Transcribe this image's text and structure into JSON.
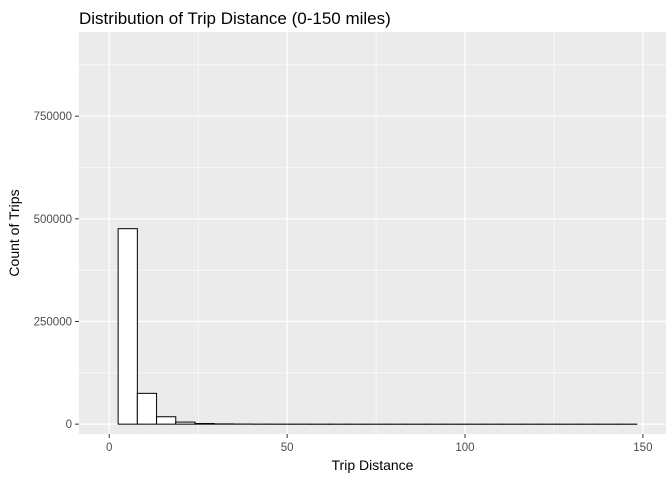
{
  "chart_data": {
    "type": "bar",
    "subtype": "histogram",
    "title": "Distribution of Trip Distance (0-150 miles)",
    "xlabel": "Trip Distance",
    "ylabel": "Count of Trips",
    "xlim": [
      -8.5,
      156.5
    ],
    "ylim": [
      -24000,
      955000
    ],
    "x_ticks": [
      0,
      50,
      100,
      150
    ],
    "y_ticks": [
      0,
      250000,
      500000,
      750000
    ],
    "x_tick_labels": [
      "0",
      "50",
      "100",
      "150"
    ],
    "y_tick_labels": [
      "0",
      "250000",
      "500000",
      "750000"
    ],
    "grid": true,
    "legend": "none",
    "colors": {
      "panel_background": "#ebebeb",
      "grid_major": "#ffffff",
      "bar_fill": "#ffffff",
      "bar_outline": "#000000"
    },
    "bins": [
      {
        "x0": 2.5,
        "x1": 7.9,
        "count": 476000
      },
      {
        "x0": 7.9,
        "x1": 13.3,
        "count": 75000
      },
      {
        "x0": 13.3,
        "x1": 18.7,
        "count": 18000
      },
      {
        "x0": 18.7,
        "x1": 24.1,
        "count": 5000
      },
      {
        "x0": 24.1,
        "x1": 29.5,
        "count": 1500
      },
      {
        "x0": 29.5,
        "x1": 34.9,
        "count": 600
      },
      {
        "x0": 34.9,
        "x1": 40.3,
        "count": 250
      },
      {
        "x0": 40.3,
        "x1": 45.7,
        "count": 120
      },
      {
        "x0": 45.7,
        "x1": 51.1,
        "count": 60
      },
      {
        "x0": 51.1,
        "x1": 56.5,
        "count": 30
      },
      {
        "x0": 56.5,
        "x1": 61.9,
        "count": 15
      },
      {
        "x0": 61.9,
        "x1": 67.3,
        "count": 10
      },
      {
        "x0": 67.3,
        "x1": 72.7,
        "count": 5
      },
      {
        "x0": 72.7,
        "x1": 78.1,
        "count": 3
      },
      {
        "x0": 78.1,
        "x1": 83.5,
        "count": 2
      },
      {
        "x0": 83.5,
        "x1": 88.9,
        "count": 2
      },
      {
        "x0": 88.9,
        "x1": 94.3,
        "count": 1
      },
      {
        "x0": 94.3,
        "x1": 99.7,
        "count": 1
      },
      {
        "x0": 99.7,
        "x1": 105.1,
        "count": 1
      },
      {
        "x0": 105.1,
        "x1": 110.5,
        "count": 1
      },
      {
        "x0": 110.5,
        "x1": 115.9,
        "count": 0
      },
      {
        "x0": 115.9,
        "x1": 121.3,
        "count": 1
      },
      {
        "x0": 121.3,
        "x1": 126.7,
        "count": 0
      },
      {
        "x0": 126.7,
        "x1": 132.1,
        "count": 0
      },
      {
        "x0": 132.1,
        "x1": 137.5,
        "count": 1
      },
      {
        "x0": 137.5,
        "x1": 142.9,
        "count": 0
      },
      {
        "x0": 142.9,
        "x1": 148.3,
        "count": 1
      }
    ]
  }
}
